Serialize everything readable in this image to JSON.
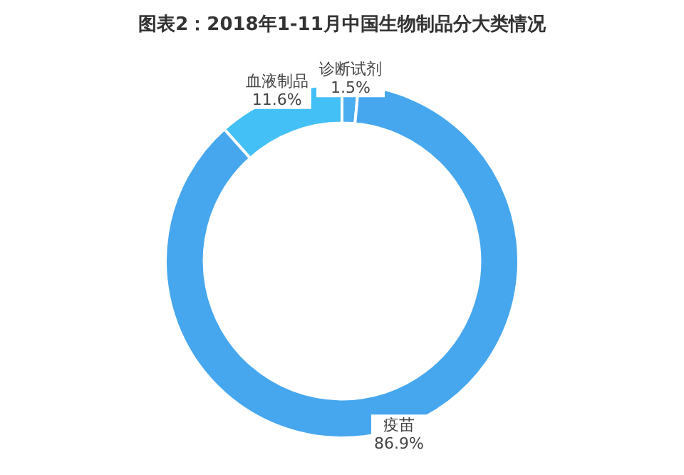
{
  "chart_data": {
    "type": "donut",
    "title": "图表2：2018年1-11月中国生物制品分大类情况",
    "categories": [
      "诊断试剂",
      "疫苗",
      "血液制品"
    ],
    "values": [
      1.5,
      86.9,
      11.6
    ],
    "value_labels": [
      "1.5%",
      "86.9%",
      "11.6%"
    ],
    "colors": [
      "#4aaef0",
      "#46a7ee",
      "#43c0f6"
    ]
  }
}
